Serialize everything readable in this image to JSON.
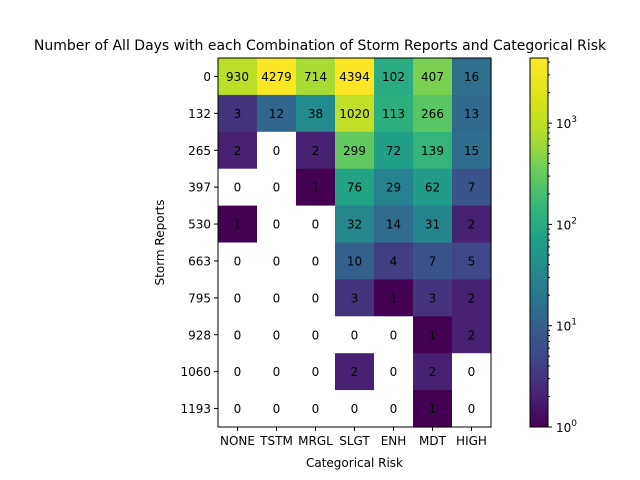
{
  "chart_data": {
    "type": "heatmap",
    "title": "Number of All Days with each Combination of Storm Reports and Categorical Risk",
    "xlabel": "Categorical Risk",
    "ylabel": "Storm Reports",
    "x_categories": [
      "NONE",
      "TSTM",
      "MRGL",
      "SLGT",
      "ENH",
      "MDT",
      "HIGH"
    ],
    "y_categories": [
      "0",
      "132",
      "265",
      "397",
      "530",
      "663",
      "795",
      "928",
      "1060",
      "1193"
    ],
    "values": [
      [
        930,
        4279,
        714,
        4394,
        102,
        407,
        16
      ],
      [
        3,
        12,
        38,
        1020,
        113,
        266,
        13
      ],
      [
        2,
        0,
        2,
        299,
        72,
        139,
        15
      ],
      [
        0,
        0,
        1,
        76,
        29,
        62,
        7
      ],
      [
        1,
        0,
        0,
        32,
        14,
        31,
        2
      ],
      [
        0,
        0,
        0,
        10,
        4,
        7,
        5
      ],
      [
        0,
        0,
        0,
        3,
        1,
        3,
        2
      ],
      [
        0,
        0,
        0,
        0,
        0,
        1,
        2
      ],
      [
        0,
        0,
        0,
        2,
        0,
        2,
        0
      ],
      [
        0,
        0,
        0,
        0,
        0,
        1,
        0
      ]
    ],
    "colorbar": {
      "scale": "log",
      "colormap": "viridis",
      "range": [
        1,
        4394
      ],
      "ticks": [
        {
          "value": 1,
          "base": "10",
          "exp": "0"
        },
        {
          "value": 10,
          "base": "10",
          "exp": "1"
        },
        {
          "value": 100,
          "base": "10",
          "exp": "2"
        },
        {
          "value": 1000,
          "base": "10",
          "exp": "3"
        }
      ]
    },
    "zero_cell_color": "#ffffff"
  }
}
